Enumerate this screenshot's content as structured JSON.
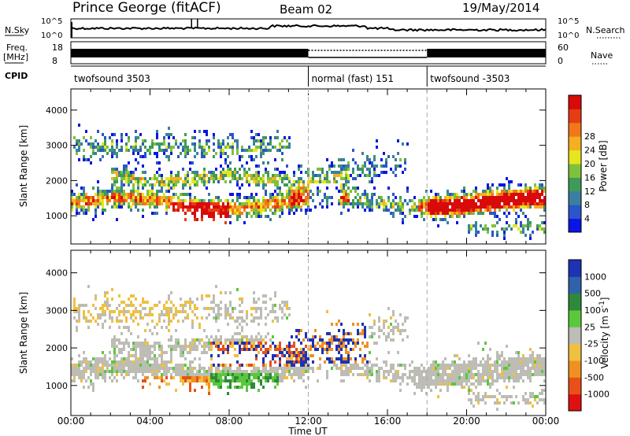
{
  "header": {
    "station": "Prince George (fitACF)",
    "beam": "Beam 02",
    "date": "19/May/2014"
  },
  "strips": {
    "nsky_label": "N.Sky",
    "nsearch_label": "N.Search",
    "freq_label_1": "Freq.",
    "freq_label_2": "[MHz]",
    "nave_label": "Nave",
    "cpid_label": "CPID",
    "nsky_ticks": [
      "10^5",
      "10^0"
    ],
    "freq_ticks": [
      "18",
      "8"
    ],
    "nave_ticks": [
      "60",
      "0"
    ]
  },
  "cpid_segments": [
    {
      "label": "twofsound 3503",
      "start_h": 0,
      "end_h": 12
    },
    {
      "label": "normal (fast) 151",
      "start_h": 12,
      "end_h": 18
    },
    {
      "label": "twofsound -3503",
      "start_h": 18,
      "end_h": 24
    }
  ],
  "chart_data": [
    {
      "type": "heatmap",
      "name": "power",
      "ylabel": "Slant Range [km]",
      "ylim": [
        200,
        4600
      ],
      "y_ticks": [
        1000,
        2000,
        3000,
        4000
      ],
      "xlim": [
        0,
        24
      ],
      "colorbar": {
        "label": "Power [dB]",
        "ticks": [
          "4",
          "8",
          "12",
          "16",
          "20",
          "24",
          "28"
        ],
        "colors": [
          "#0a14e6",
          "#2b55c8",
          "#3a7fa0",
          "#3f9a5a",
          "#7fc23a",
          "#e6e61e",
          "#f5b020",
          "#f07818",
          "#e83c14",
          "#d80a0a"
        ]
      }
    },
    {
      "type": "heatmap",
      "name": "velocity",
      "ylabel": "Slant Range [km]",
      "ylim": [
        200,
        4600
      ],
      "y_ticks": [
        1000,
        2000,
        3000,
        4000
      ],
      "xlim": [
        0,
        24
      ],
      "xlabel": "Time UT",
      "x_ticks": [
        "00:00",
        "04:00",
        "08:00",
        "12:00",
        "16:00",
        "20:00",
        "00:00"
      ],
      "colorbar": {
        "label": "Velocity [m s^-1]",
        "ticks": [
          "1000",
          "500",
          "100",
          "25",
          "-25",
          "-100",
          "-500",
          "-1000"
        ],
        "colors": [
          "#1e32b4",
          "#2f62a8",
          "#2e8a3a",
          "#5ac83c",
          "#bdbdb5",
          "#f0c040",
          "#f09020",
          "#e85018",
          "#e01010"
        ]
      }
    }
  ]
}
